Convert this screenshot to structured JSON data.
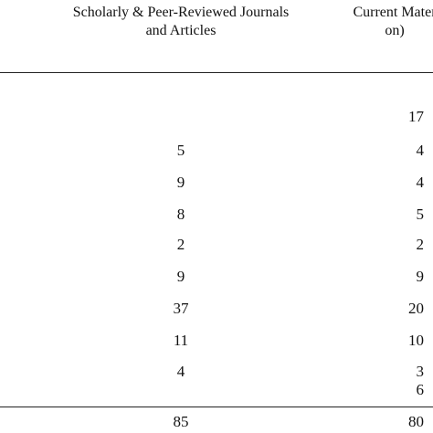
{
  "table": {
    "headers": [
      {
        "line1": "Scholarly & Peer-Reviewed Journals",
        "line2": "and Articles"
      },
      {
        "line1": "Current Mater",
        "line2": "on)"
      }
    ],
    "rows": [
      {
        "col1": "",
        "col2": "17"
      },
      {
        "col1": "5",
        "col2": "4"
      },
      {
        "col1": "9",
        "col2": "4"
      },
      {
        "col1": "8",
        "col2": "5"
      },
      {
        "col1": "2",
        "col2": "2"
      },
      {
        "col1": "9",
        "col2": "9"
      },
      {
        "col1": "37",
        "col2": "20"
      },
      {
        "col1": "11",
        "col2": "10"
      },
      {
        "col1": "4",
        "col2": "3"
      },
      {
        "col1": "",
        "col2": "6"
      }
    ],
    "totals": {
      "col1": "85",
      "col2": "80"
    }
  }
}
